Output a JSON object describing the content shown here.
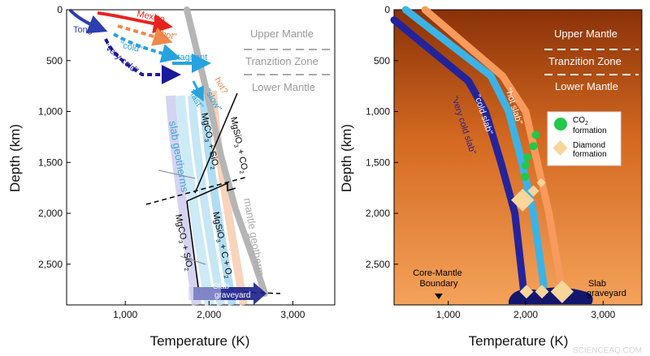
{
  "chart_data": [
    {
      "type": "line",
      "panel": "left",
      "xlabel": "Temperature (K)",
      "ylabel": "Depth (km)",
      "xlim": [
        300,
        3500
      ],
      "ylim": [
        2900,
        0
      ],
      "y_inverted": true,
      "x_ticks": [
        1000,
        2000,
        3000
      ],
      "x_tick_labels": [
        "1,000",
        "2,000",
        "3,000"
      ],
      "y_ticks": [
        0,
        500,
        1000,
        1500,
        2000,
        2500
      ],
      "y_tick_labels": [
        "0",
        "500",
        "1,000",
        "1,500",
        "2,000",
        "2,500"
      ],
      "zones": [
        "Upper Mantle",
        "Tranzition Zone",
        "Lower Mantle"
      ],
      "zone_boundaries_km": [
        410,
        660
      ],
      "colors": {
        "mexico": "#e8231f",
        "hot": "#f08a4b",
        "cold": "#3aa8dc",
        "tonga": "#2a3fb0",
        "very_cold": "#1a1a9a",
        "geotherm": "#b5b5b5",
        "slab_graveyard": "#1b1f8a"
      },
      "series": [
        {
          "name": "Mexico",
          "x": [
            880,
            1300
          ],
          "y": [
            0,
            120
          ]
        },
        {
          "name": "\"hot\"",
          "x": [
            1050,
            1520
          ],
          "y": [
            170,
            320
          ]
        },
        {
          "name": "\"cold\"",
          "x": [
            1020,
            1560
          ],
          "y": [
            270,
            460
          ]
        },
        {
          "name": "stagnant",
          "x": [
            1560,
            1920
          ],
          "y": [
            520,
            530
          ]
        },
        {
          "name": "Tonga",
          "x": [
            350,
            780
          ],
          "y": [
            0,
            160
          ]
        },
        {
          "name": "\"very cold\"",
          "x": [
            800,
            1080,
            1380
          ],
          "y": [
            370,
            620,
            630
          ]
        },
        {
          "name": "\"slow\"",
          "x": [
            1900,
            1980
          ],
          "y": [
            840,
            960
          ]
        },
        {
          "name": "\"fast\"",
          "x": [
            1880,
            1940
          ],
          "y": [
            800,
            1020
          ]
        },
        {
          "name": "mantle geotherm",
          "x": [
            2000,
            2160,
            2320,
            2440,
            2560,
            2690
          ],
          "y": [
            0,
            500,
            1000,
            1500,
            2000,
            2700
          ]
        }
      ],
      "annotations": [
        "hot?",
        "MgSiO3 + CO2",
        "MgCO3 + SiO2",
        "slab geotherms",
        "MgSiO3 + C + O2",
        "MgCO3 + SiO2",
        "Slab graveyard"
      ]
    },
    {
      "type": "line",
      "panel": "right",
      "xlabel": "Temperature (K)",
      "ylabel": "Depth (km)",
      "xlim": [
        300,
        3500
      ],
      "ylim": [
        2900,
        0
      ],
      "y_inverted": true,
      "x_ticks": [
        1000,
        2000,
        3000
      ],
      "x_tick_labels": [
        "1,000",
        "2,000",
        "3,000"
      ],
      "y_ticks": [
        0,
        500,
        1000,
        1500,
        2000,
        2500
      ],
      "y_tick_labels": [
        "0",
        "500",
        "1,000",
        "1,500",
        "2,000",
        "2,500"
      ],
      "zones": [
        "Upper Mantle",
        "Tranzition Zone",
        "Lower Mantle"
      ],
      "zone_boundaries_km": [
        410,
        660
      ],
      "colors": {
        "hot_slab": "#f79a5c",
        "cold_slab": "#3cb3e6",
        "very_cold_slab": "#24239a",
        "co2": "#21c84a",
        "diamond": "#f8d59a",
        "graveyard": "#14166e"
      },
      "series": [
        {
          "name": "\"hot slab\"",
          "x": [
            700,
            1700,
            2000,
            2150,
            2300,
            2480
          ],
          "y": [
            0,
            650,
            1000,
            1500,
            2000,
            2800
          ]
        },
        {
          "name": "\"cold slab\"",
          "x": [
            450,
            1550,
            1780,
            1950,
            2100,
            2250
          ],
          "y": [
            0,
            650,
            1000,
            1500,
            2000,
            2800
          ]
        },
        {
          "name": "\"very cold slab\"",
          "x": [
            300,
            1260,
            1480,
            1680,
            1860,
            1980
          ],
          "y": [
            100,
            700,
            1000,
            1500,
            2000,
            2800
          ]
        }
      ],
      "co2_formation": {
        "x": [
          2130,
          2100,
          2020,
          2000,
          1990
        ],
        "y": [
          1230,
          1340,
          1450,
          1530,
          1640
        ]
      },
      "diamond_formation": {
        "x": [
          1960,
          2100,
          2200,
          2010,
          2210,
          2470
        ],
        "y": [
          1870,
          1780,
          1700,
          2770,
          2770,
          2770
        ]
      },
      "legend": [
        "CO2 formation",
        "Diamond formation"
      ],
      "annotations": [
        "Core-Mantle Boundary",
        "Slab graveyard"
      ]
    }
  ],
  "text": {
    "left_ylabel": "Depth (km)",
    "right_ylabel": "Depth (km)",
    "left_xlabel": "Temperature (K)",
    "right_xlabel": "Temperature (K)",
    "upper_mantle": "Upper Mantle",
    "transition_zone": "Tranzition Zone",
    "lower_mantle": "Lower Mantle",
    "mexico": "Mexico",
    "tonga": "Tonga",
    "hot": "\"hot\"",
    "cold": "\"cold\"",
    "very_cold": "\"very cold\"",
    "stagnant": "stagnant",
    "slow": "\"slow\"",
    "fast": "\"fast\"",
    "hot_q": "hot?",
    "slab_geotherms": "slab geotherms",
    "mantle_geotherm": "mantle geotherm",
    "slab_graveyard": "Slab graveyard",
    "hot_slab": "\"hot slab\"",
    "cold_slab": "\"cold slab\"",
    "very_cold_slab": "\"very cold slab\"",
    "co2_formation": "formation",
    "diamond_formation": "Diamond formation",
    "core_mantle_boundary": "Core-Mantle Boundary",
    "watermark": "SCIENCEAQ.COM"
  }
}
